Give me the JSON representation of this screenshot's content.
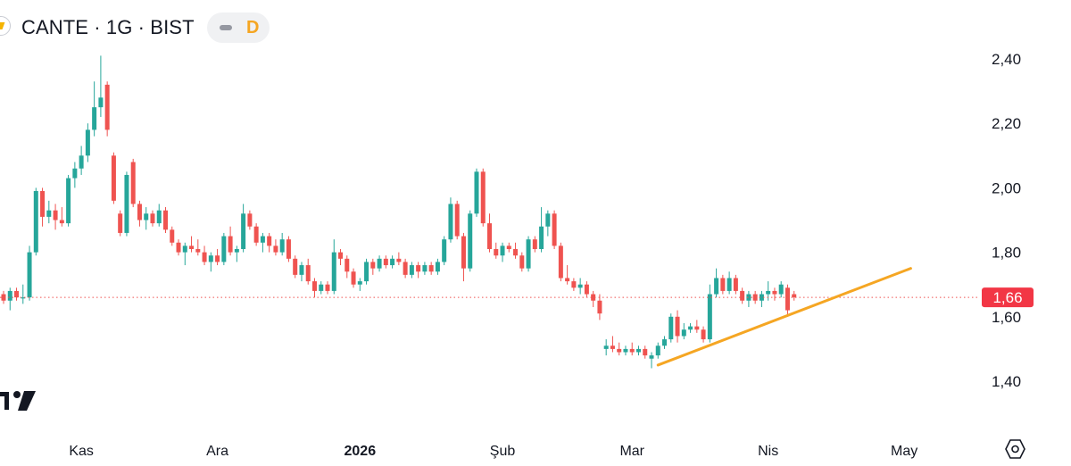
{
  "header": {
    "title": "CANTE · 1G · BIST",
    "status_badge": "D",
    "icons": [
      "symbol-logo-icon",
      "minus-icon"
    ]
  },
  "colors": {
    "up": "#26a69a",
    "down": "#ef5350",
    "trendline": "#f5a623",
    "last_price": "#f23645",
    "price_line": "#ef5350"
  },
  "chart_data": {
    "type": "candlestick",
    "title": "",
    "xlabel": "",
    "ylabel": "",
    "ylim": [
      1.2,
      2.5
    ],
    "y_ticks": [
      "1,40",
      "1,60",
      "1,80",
      "2,00",
      "2,20",
      "2,40"
    ],
    "y_tick_values": [
      1.4,
      1.6,
      1.8,
      2.0,
      2.2,
      2.4
    ],
    "x_ticks": [
      {
        "label": "Kas",
        "index": 12,
        "bold": false
      },
      {
        "label": "Ara",
        "index": 33,
        "bold": false
      },
      {
        "label": "2026",
        "index": 55,
        "bold": true
      },
      {
        "label": "Şub",
        "index": 77,
        "bold": false
      },
      {
        "label": "Mar",
        "index": 97,
        "bold": false
      },
      {
        "label": "Nis",
        "index": 118,
        "bold": false
      },
      {
        "label": "May",
        "index": 139,
        "bold": false
      }
    ],
    "last_price": 1.66,
    "last_price_label": "1,66",
    "candles": [
      [
        1.67,
        1.68,
        1.64,
        1.65
      ],
      [
        1.65,
        1.69,
        1.62,
        1.68
      ],
      [
        1.68,
        1.69,
        1.65,
        1.66
      ],
      [
        1.66,
        1.7,
        1.64,
        1.66
      ],
      [
        1.66,
        1.82,
        1.65,
        1.8
      ],
      [
        1.8,
        2.0,
        1.79,
        1.99
      ],
      [
        1.99,
        2.0,
        1.88,
        1.91
      ],
      [
        1.91,
        1.96,
        1.89,
        1.93
      ],
      [
        1.93,
        1.95,
        1.87,
        1.9
      ],
      [
        1.9,
        1.94,
        1.88,
        1.89
      ],
      [
        1.89,
        2.04,
        1.88,
        2.03
      ],
      [
        2.03,
        2.08,
        2.0,
        2.06
      ],
      [
        2.06,
        2.13,
        2.04,
        2.1
      ],
      [
        2.1,
        2.2,
        2.08,
        2.18
      ],
      [
        2.18,
        2.33,
        2.16,
        2.25
      ],
      [
        2.25,
        2.41,
        2.22,
        2.28
      ],
      [
        2.32,
        2.33,
        2.16,
        2.18
      ],
      [
        2.1,
        2.11,
        1.95,
        1.96
      ],
      [
        1.92,
        1.93,
        1.85,
        1.86
      ],
      [
        1.86,
        2.05,
        1.85,
        2.04
      ],
      [
        2.08,
        2.09,
        1.94,
        1.95
      ],
      [
        1.95,
        1.96,
        1.88,
        1.9
      ],
      [
        1.9,
        1.94,
        1.87,
        1.92
      ],
      [
        1.92,
        1.93,
        1.88,
        1.89
      ],
      [
        1.89,
        1.95,
        1.88,
        1.93
      ],
      [
        1.93,
        1.94,
        1.86,
        1.87
      ],
      [
        1.87,
        1.88,
        1.82,
        1.83
      ],
      [
        1.83,
        1.84,
        1.79,
        1.8
      ],
      [
        1.8,
        1.83,
        1.76,
        1.82
      ],
      [
        1.82,
        1.85,
        1.8,
        1.81
      ],
      [
        1.81,
        1.84,
        1.79,
        1.8
      ],
      [
        1.8,
        1.82,
        1.76,
        1.77
      ],
      [
        1.77,
        1.8,
        1.74,
        1.79
      ],
      [
        1.79,
        1.81,
        1.76,
        1.77
      ],
      [
        1.77,
        1.86,
        1.76,
        1.85
      ],
      [
        1.85,
        1.88,
        1.79,
        1.8
      ],
      [
        1.8,
        1.82,
        1.77,
        1.81
      ],
      [
        1.81,
        1.95,
        1.8,
        1.92
      ],
      [
        1.92,
        1.93,
        1.87,
        1.88
      ],
      [
        1.88,
        1.89,
        1.82,
        1.83
      ],
      [
        1.83,
        1.86,
        1.8,
        1.85
      ],
      [
        1.85,
        1.86,
        1.8,
        1.82
      ],
      [
        1.82,
        1.84,
        1.79,
        1.8
      ],
      [
        1.8,
        1.86,
        1.79,
        1.84
      ],
      [
        1.84,
        1.85,
        1.77,
        1.78
      ],
      [
        1.78,
        1.79,
        1.72,
        1.73
      ],
      [
        1.73,
        1.77,
        1.71,
        1.76
      ],
      [
        1.76,
        1.78,
        1.7,
        1.71
      ],
      [
        1.71,
        1.72,
        1.66,
        1.68
      ],
      [
        1.68,
        1.71,
        1.67,
        1.7
      ],
      [
        1.7,
        1.71,
        1.67,
        1.68
      ],
      [
        1.68,
        1.84,
        1.67,
        1.8
      ],
      [
        1.8,
        1.81,
        1.76,
        1.78
      ],
      [
        1.78,
        1.79,
        1.72,
        1.74
      ],
      [
        1.74,
        1.75,
        1.69,
        1.7
      ],
      [
        1.7,
        1.72,
        1.68,
        1.71
      ],
      [
        1.71,
        1.78,
        1.7,
        1.77
      ],
      [
        1.77,
        1.78,
        1.73,
        1.75
      ],
      [
        1.75,
        1.79,
        1.74,
        1.78
      ],
      [
        1.78,
        1.79,
        1.75,
        1.76
      ],
      [
        1.76,
        1.79,
        1.75,
        1.78
      ],
      [
        1.78,
        1.8,
        1.76,
        1.77
      ],
      [
        1.77,
        1.78,
        1.72,
        1.73
      ],
      [
        1.73,
        1.77,
        1.72,
        1.76
      ],
      [
        1.76,
        1.77,
        1.72,
        1.74
      ],
      [
        1.74,
        1.77,
        1.73,
        1.76
      ],
      [
        1.76,
        1.77,
        1.73,
        1.74
      ],
      [
        1.74,
        1.78,
        1.73,
        1.77
      ],
      [
        1.77,
        1.85,
        1.76,
        1.84
      ],
      [
        1.84,
        1.97,
        1.83,
        1.95
      ],
      [
        1.95,
        1.96,
        1.84,
        1.85
      ],
      [
        1.85,
        1.86,
        1.71,
        1.75
      ],
      [
        1.75,
        1.93,
        1.74,
        1.92
      ],
      [
        1.92,
        2.06,
        1.91,
        2.05
      ],
      [
        2.05,
        2.06,
        1.88,
        1.89
      ],
      [
        1.89,
        1.92,
        1.8,
        1.81
      ],
      [
        1.81,
        1.83,
        1.78,
        1.79
      ],
      [
        1.79,
        1.83,
        1.77,
        1.82
      ],
      [
        1.82,
        1.83,
        1.8,
        1.81
      ],
      [
        1.81,
        1.83,
        1.78,
        1.79
      ],
      [
        1.79,
        1.8,
        1.74,
        1.75
      ],
      [
        1.75,
        1.85,
        1.74,
        1.84
      ],
      [
        1.84,
        1.85,
        1.8,
        1.81
      ],
      [
        1.81,
        1.94,
        1.8,
        1.88
      ],
      [
        1.88,
        1.93,
        1.85,
        1.92
      ],
      [
        1.92,
        1.93,
        1.81,
        1.82
      ],
      [
        1.82,
        1.83,
        1.71,
        1.72
      ],
      [
        1.72,
        1.76,
        1.7,
        1.71
      ],
      [
        1.71,
        1.72,
        1.68,
        1.69
      ],
      [
        1.69,
        1.72,
        1.67,
        1.7
      ],
      [
        1.7,
        1.71,
        1.66,
        1.67
      ],
      [
        1.67,
        1.68,
        1.63,
        1.65
      ],
      [
        1.65,
        1.67,
        1.59,
        1.61
      ],
      [
        1.5,
        1.53,
        1.48,
        1.51
      ],
      [
        1.51,
        1.54,
        1.49,
        1.5
      ],
      [
        1.5,
        1.52,
        1.48,
        1.49
      ],
      [
        1.49,
        1.51,
        1.48,
        1.5
      ],
      [
        1.5,
        1.52,
        1.48,
        1.49
      ],
      [
        1.49,
        1.51,
        1.48,
        1.5
      ],
      [
        1.5,
        1.51,
        1.47,
        1.48
      ],
      [
        1.47,
        1.49,
        1.44,
        1.48
      ],
      [
        1.48,
        1.52,
        1.47,
        1.51
      ],
      [
        1.51,
        1.54,
        1.5,
        1.53
      ],
      [
        1.53,
        1.61,
        1.52,
        1.6
      ],
      [
        1.6,
        1.62,
        1.52,
        1.54
      ],
      [
        1.54,
        1.58,
        1.53,
        1.56
      ],
      [
        1.56,
        1.58,
        1.55,
        1.57
      ],
      [
        1.57,
        1.59,
        1.55,
        1.56
      ],
      [
        1.56,
        1.57,
        1.52,
        1.53
      ],
      [
        1.53,
        1.7,
        1.52,
        1.67
      ],
      [
        1.67,
        1.75,
        1.66,
        1.72
      ],
      [
        1.72,
        1.73,
        1.67,
        1.68
      ],
      [
        1.68,
        1.74,
        1.67,
        1.72
      ],
      [
        1.72,
        1.73,
        1.67,
        1.68
      ],
      [
        1.68,
        1.69,
        1.64,
        1.65
      ],
      [
        1.65,
        1.68,
        1.63,
        1.67
      ],
      [
        1.67,
        1.68,
        1.64,
        1.65
      ],
      [
        1.65,
        1.68,
        1.63,
        1.67
      ],
      [
        1.67,
        1.71,
        1.65,
        1.68
      ],
      [
        1.68,
        1.69,
        1.65,
        1.67
      ],
      [
        1.67,
        1.71,
        1.66,
        1.7
      ],
      [
        1.69,
        1.7,
        1.6,
        1.62
      ],
      [
        1.67,
        1.68,
        1.65,
        1.66
      ]
    ],
    "trendline": {
      "start": {
        "index": 101,
        "price": 1.45
      },
      "end": {
        "index": 140,
        "price": 1.75
      }
    }
  }
}
